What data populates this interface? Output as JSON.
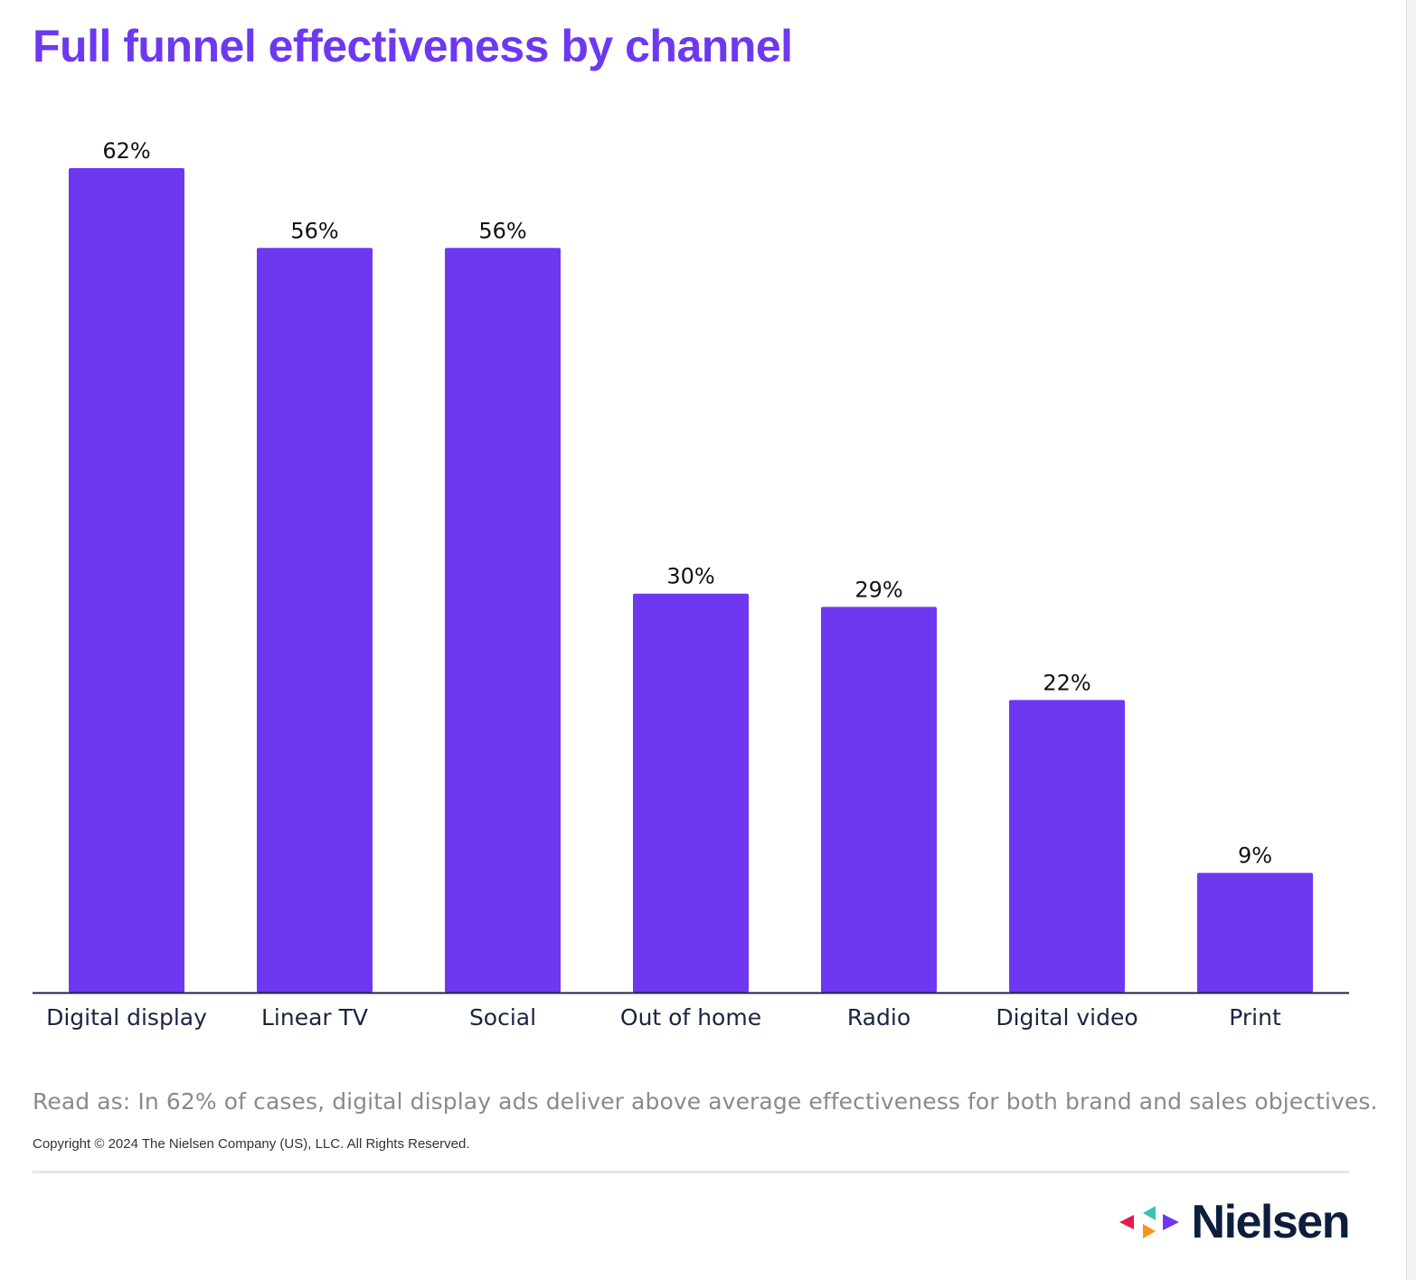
{
  "title": "Full funnel effectiveness by channel",
  "read_as": "Read as: In 62% of cases, digital display ads deliver above average effectiveness for both brand and sales objectives.",
  "copyright": "Copyright © 2024 The Nielsen Company (US), LLC. All Rights Reserved.",
  "brand": {
    "name": "Nielsen",
    "logo_colors": [
      "#E8184D",
      "#3CC4B0",
      "#F7941D",
      "#6E38F0"
    ]
  },
  "colors": {
    "bar": "#6E38F0",
    "title": "#6E38F0",
    "axis": "#1a2540"
  },
  "chart_data": {
    "type": "bar",
    "categories": [
      "Digital display",
      "Linear TV",
      "Social",
      "Out of home",
      "Radio",
      "Digital video",
      "Print"
    ],
    "values": [
      62,
      56,
      56,
      30,
      29,
      22,
      9
    ],
    "value_labels": [
      "62%",
      "56%",
      "56%",
      "30%",
      "29%",
      "22%",
      "9%"
    ],
    "title": "Full funnel effectiveness by channel",
    "xlabel": "",
    "ylabel": "",
    "ylim": [
      0,
      62
    ],
    "grid": false,
    "legend": "none"
  }
}
